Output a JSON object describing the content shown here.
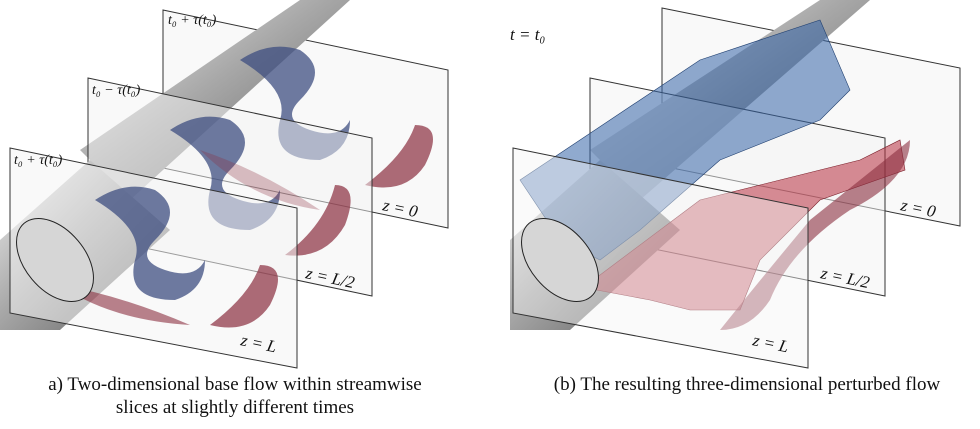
{
  "figure": {
    "panels": [
      {
        "slice_labels": [
          "t₀ + τ(t₀)",
          "t₀ − τ(t₀)",
          "t₀ + τ(t₀)"
        ],
        "plane_labels": [
          "z = 0",
          "z = L/2",
          "z = L"
        ],
        "caption": [
          "a) Two-dimensional base flow within streamwise",
          "slices at slightly different times"
        ]
      },
      {
        "time_label": "t = t₀",
        "plane_labels": [
          "z = 0",
          "z = L/2",
          "z = L"
        ],
        "caption": [
          "(b) The resulting three-dimensional perturbed flow"
        ]
      }
    ]
  }
}
